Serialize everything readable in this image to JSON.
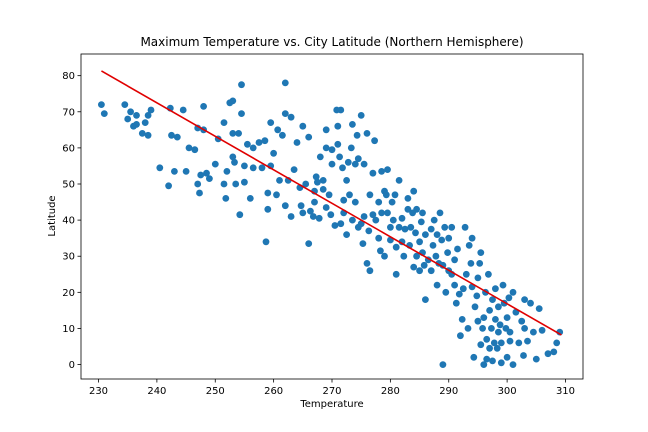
{
  "chart_data": {
    "type": "scatter",
    "title": "Maximum Temperature vs. City Latitude (Northern Hemisphere)",
    "xlabel": "Temperature",
    "ylabel": "Latitude",
    "xlim": [
      227,
      313
    ],
    "ylim": [
      -4,
      86
    ],
    "xticks": [
      230,
      240,
      250,
      260,
      270,
      280,
      290,
      300,
      310
    ],
    "yticks": [
      0,
      10,
      20,
      30,
      40,
      50,
      60,
      70,
      80
    ],
    "grid": false,
    "colors": {
      "points": "#1f77b4",
      "regression": "#e00000"
    },
    "regression": {
      "x": [
        230.5,
        309.3
      ],
      "y": [
        81.3,
        8.2
      ]
    },
    "points": [
      [
        230.5,
        72
      ],
      [
        231,
        69.5
      ],
      [
        234.5,
        72
      ],
      [
        235,
        68
      ],
      [
        235.5,
        70
      ],
      [
        236,
        66
      ],
      [
        236.5,
        69
      ],
      [
        236.5,
        66.5
      ],
      [
        237.5,
        64
      ],
      [
        238,
        67
      ],
      [
        238.5,
        69
      ],
      [
        238.5,
        63.5
      ],
      [
        239,
        70.5
      ],
      [
        240.5,
        54.5
      ],
      [
        242,
        49.5
      ],
      [
        242.3,
        71
      ],
      [
        242.5,
        63.5
      ],
      [
        243,
        53.5
      ],
      [
        243.5,
        63
      ],
      [
        244.5,
        70.5
      ],
      [
        245,
        53.5
      ],
      [
        245.5,
        60
      ],
      [
        246.5,
        59.5
      ],
      [
        247,
        50
      ],
      [
        247,
        65.5
      ],
      [
        247.3,
        47.5
      ],
      [
        247.5,
        52.5
      ],
      [
        248,
        65
      ],
      [
        248,
        71.5
      ],
      [
        248.5,
        53
      ],
      [
        249,
        51.5
      ],
      [
        250,
        55.5
      ],
      [
        250.5,
        62.5
      ],
      [
        251.5,
        50
      ],
      [
        251.5,
        67
      ],
      [
        251.8,
        46
      ],
      [
        252,
        53.5
      ],
      [
        252.5,
        72.5
      ],
      [
        253,
        73
      ],
      [
        253,
        64
      ],
      [
        253,
        57.5
      ],
      [
        253.3,
        56
      ],
      [
        253.5,
        50
      ],
      [
        254,
        64
      ],
      [
        254.2,
        41.5
      ],
      [
        254.5,
        69.5
      ],
      [
        254.5,
        77.5
      ],
      [
        255,
        50.5
      ],
      [
        255,
        55
      ],
      [
        255.5,
        61
      ],
      [
        256,
        46
      ],
      [
        256.5,
        60
      ],
      [
        256.5,
        54.5
      ],
      [
        257.5,
        61.5
      ],
      [
        258,
        54.5
      ],
      [
        258.5,
        62
      ],
      [
        258.7,
        34
      ],
      [
        259,
        47.5
      ],
      [
        259,
        43
      ],
      [
        259.5,
        55
      ],
      [
        259.5,
        67
      ],
      [
        260,
        58.5
      ],
      [
        260.5,
        47
      ],
      [
        260.7,
        65
      ],
      [
        261,
        51
      ],
      [
        261.5,
        63.5
      ],
      [
        262,
        69.5
      ],
      [
        262,
        78
      ],
      [
        262,
        44
      ],
      [
        262.5,
        51
      ],
      [
        263,
        41
      ],
      [
        263,
        68.5
      ],
      [
        263.5,
        54
      ],
      [
        264,
        61.5
      ],
      [
        264.5,
        49
      ],
      [
        264.7,
        44
      ],
      [
        265,
        42
      ],
      [
        265,
        66
      ],
      [
        265.5,
        50
      ],
      [
        266,
        33.5
      ],
      [
        266,
        63
      ],
      [
        266.3,
        42.5
      ],
      [
        266.8,
        41
      ],
      [
        267,
        45
      ],
      [
        267,
        48
      ],
      [
        267.3,
        52
      ],
      [
        267.5,
        50.5
      ],
      [
        267.8,
        40.5
      ],
      [
        268,
        57.5
      ],
      [
        268.5,
        48.5
      ],
      [
        268.5,
        51
      ],
      [
        269,
        43.5
      ],
      [
        269,
        60
      ],
      [
        269,
        65
      ],
      [
        269.5,
        47
      ],
      [
        269.8,
        41.5
      ],
      [
        270,
        59.5
      ],
      [
        270,
        55.5
      ],
      [
        270.5,
        38.5
      ],
      [
        270.8,
        70.5
      ],
      [
        271,
        61
      ],
      [
        271,
        66
      ],
      [
        271.3,
        57.5
      ],
      [
        271.5,
        39
      ],
      [
        271.5,
        70.5
      ],
      [
        271.8,
        54.5
      ],
      [
        272,
        45.5
      ],
      [
        272,
        42
      ],
      [
        272.5,
        36
      ],
      [
        272.5,
        51
      ],
      [
        272.8,
        56
      ],
      [
        273,
        47
      ],
      [
        273.3,
        60
      ],
      [
        273.5,
        40
      ],
      [
        273.5,
        66.5
      ],
      [
        274,
        45
      ],
      [
        274,
        55.5
      ],
      [
        274.3,
        63.5
      ],
      [
        274.5,
        38
      ],
      [
        274.5,
        57
      ],
      [
        275,
        39
      ],
      [
        275,
        69
      ],
      [
        275.3,
        33.5
      ],
      [
        275.5,
        41
      ],
      [
        275.5,
        55.5
      ],
      [
        276,
        28
      ],
      [
        276,
        64
      ],
      [
        276.3,
        37
      ],
      [
        276.5,
        26
      ],
      [
        276.5,
        47
      ],
      [
        277,
        41.5
      ],
      [
        277,
        53
      ],
      [
        277.3,
        62
      ],
      [
        277.5,
        40
      ],
      [
        278,
        45
      ],
      [
        278,
        35
      ],
      [
        278.3,
        31.5
      ],
      [
        278.5,
        42
      ],
      [
        278.5,
        53.5
      ],
      [
        279,
        48
      ],
      [
        279,
        30
      ],
      [
        279.3,
        47
      ],
      [
        279.5,
        42
      ],
      [
        279.5,
        54
      ],
      [
        280,
        34.5
      ],
      [
        280,
        38
      ],
      [
        280.3,
        45
      ],
      [
        280.5,
        40
      ],
      [
        280.8,
        47
      ],
      [
        281,
        25
      ],
      [
        281,
        32.5
      ],
      [
        281.5,
        38
      ],
      [
        281.5,
        51
      ],
      [
        282,
        40.5
      ],
      [
        282,
        34
      ],
      [
        282.3,
        30
      ],
      [
        282.5,
        37.5
      ],
      [
        283,
        43
      ],
      [
        283,
        46
      ],
      [
        283.3,
        33
      ],
      [
        283.5,
        38
      ],
      [
        283.8,
        42
      ],
      [
        284,
        48
      ],
      [
        284,
        27
      ],
      [
        284.3,
        36.5
      ],
      [
        284.5,
        30
      ],
      [
        284.5,
        43
      ],
      [
        285,
        26
      ],
      [
        285,
        34
      ],
      [
        285.3,
        39.5
      ],
      [
        285.5,
        31
      ],
      [
        285.5,
        42
      ],
      [
        285.8,
        27.5
      ],
      [
        286,
        18
      ],
      [
        286,
        36
      ],
      [
        286.5,
        29
      ],
      [
        287,
        37.5
      ],
      [
        287,
        26
      ],
      [
        287.3,
        33
      ],
      [
        287.5,
        40
      ],
      [
        287.8,
        30
      ],
      [
        288,
        36
      ],
      [
        288,
        22
      ],
      [
        288.3,
        28
      ],
      [
        288.5,
        42
      ],
      [
        288.8,
        34.5
      ],
      [
        289,
        27.5
      ],
      [
        289,
        0
      ],
      [
        289.3,
        38
      ],
      [
        289.5,
        20
      ],
      [
        289.8,
        31
      ],
      [
        290,
        26
      ],
      [
        290,
        35
      ],
      [
        290.5,
        25
      ],
      [
        290.5,
        38
      ],
      [
        291,
        22
      ],
      [
        291,
        29
      ],
      [
        291.3,
        17
      ],
      [
        291.5,
        32
      ],
      [
        291.8,
        19.5
      ],
      [
        292,
        8
      ],
      [
        292.3,
        12.5
      ],
      [
        292.5,
        21
      ],
      [
        292.8,
        38
      ],
      [
        293,
        25
      ],
      [
        293.3,
        10
      ],
      [
        293.5,
        33
      ],
      [
        293.8,
        28
      ],
      [
        294,
        21.5
      ],
      [
        294,
        35
      ],
      [
        294.3,
        2
      ],
      [
        294.5,
        16
      ],
      [
        294.8,
        19
      ],
      [
        295,
        24
      ],
      [
        295,
        12
      ],
      [
        295.3,
        28
      ],
      [
        295.5,
        31
      ],
      [
        295.5,
        5.5
      ],
      [
        295.8,
        10
      ],
      [
        296,
        13
      ],
      [
        296,
        0
      ],
      [
        296.3,
        20
      ],
      [
        296.5,
        1.5
      ],
      [
        296.5,
        7
      ],
      [
        296.8,
        25
      ],
      [
        297,
        4.5
      ],
      [
        297,
        15
      ],
      [
        297.3,
        10
      ],
      [
        297.5,
        18
      ],
      [
        297.5,
        1
      ],
      [
        297.8,
        6
      ],
      [
        298,
        12.5
      ],
      [
        298,
        21
      ],
      [
        298.3,
        4.5
      ],
      [
        298.5,
        9
      ],
      [
        298.5,
        16
      ],
      [
        298.8,
        11
      ],
      [
        299,
        0.5
      ],
      [
        299,
        6
      ],
      [
        299.3,
        22
      ],
      [
        299.5,
        17
      ],
      [
        299.8,
        10
      ],
      [
        300,
        2
      ],
      [
        300,
        13
      ],
      [
        300.3,
        18.5
      ],
      [
        300.5,
        6.5
      ],
      [
        300.5,
        9
      ],
      [
        301,
        0
      ],
      [
        301,
        20
      ],
      [
        301.5,
        14.5
      ],
      [
        302,
        6
      ],
      [
        302.5,
        12
      ],
      [
        302.8,
        2.5
      ],
      [
        303,
        10
      ],
      [
        303,
        18
      ],
      [
        303.5,
        6.5
      ],
      [
        304,
        17
      ],
      [
        304.5,
        9
      ],
      [
        305,
        1.5
      ],
      [
        305.5,
        15.5
      ],
      [
        306,
        9.5
      ],
      [
        307,
        3
      ],
      [
        308,
        3.5
      ],
      [
        308.5,
        6
      ],
      [
        309,
        9
      ]
    ]
  }
}
